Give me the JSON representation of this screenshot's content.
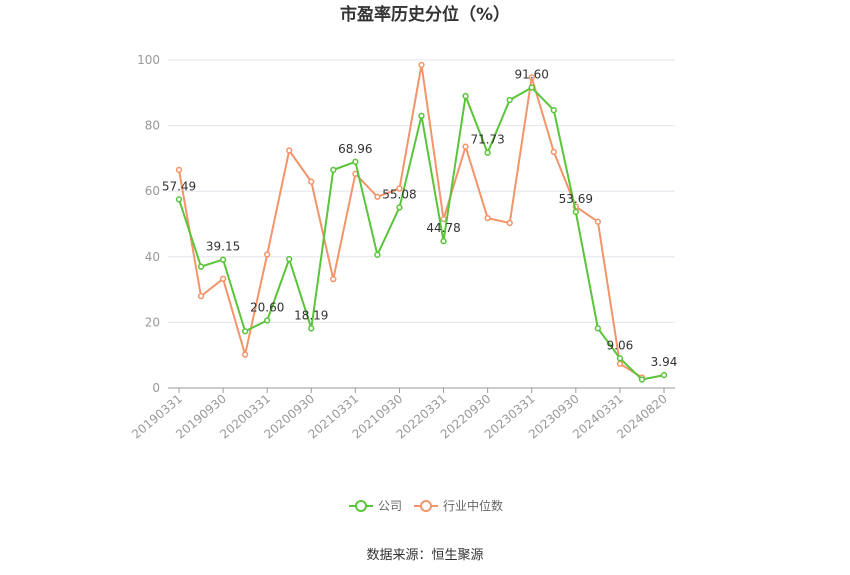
{
  "chart_data": {
    "type": "line",
    "title": "市盈率历史分位（%）",
    "source": "数据来源：恒生聚源",
    "x": [
      "20190331",
      "20190630",
      "20190930",
      "20191231",
      "20200331",
      "20200630",
      "20200930",
      "20201231",
      "20210331",
      "20210630",
      "20210930",
      "20211231",
      "20220331",
      "20220630",
      "20220930",
      "20221231",
      "20230331",
      "20230630",
      "20230930",
      "20231231",
      "20240331",
      "20240630",
      "20240820"
    ],
    "x_tick_labels": [
      "20190331",
      "20190930",
      "20200331",
      "20200930",
      "20210331",
      "20210930",
      "20220331",
      "20220930",
      "20230331",
      "20230930",
      "20240331",
      "20240820"
    ],
    "ylim": [
      0,
      100
    ],
    "y_ticks": [
      "0",
      "20",
      "40",
      "60",
      "80",
      "100"
    ],
    "grid": true,
    "legend_position": "bottom",
    "series": [
      {
        "name": "公司",
        "color": "#5ac43a",
        "values": [
          57.49,
          37.0,
          39.15,
          17.3,
          20.6,
          39.3,
          18.19,
          66.5,
          68.96,
          40.6,
          55.08,
          83.0,
          44.78,
          89.0,
          71.73,
          87.8,
          91.6,
          84.7,
          53.69,
          18.2,
          9.06,
          2.6,
          3.94
        ],
        "labels": [
          "57.49",
          "",
          "39.15",
          "",
          "20.60",
          "",
          "18.19",
          "",
          "68.96",
          "",
          "55.08",
          "",
          "44.78",
          "",
          "71.73",
          "",
          "91.60",
          "",
          "53.69",
          "",
          "9.06",
          "",
          "3.94"
        ]
      },
      {
        "name": "行业中位数",
        "color": "#f4946a",
        "values": [
          66.5,
          28.0,
          33.3,
          10.2,
          40.7,
          72.4,
          62.9,
          33.2,
          65.3,
          58.3,
          60.8,
          98.5,
          51.5,
          73.6,
          51.8,
          50.3,
          94.7,
          72.0,
          55.3,
          50.7,
          7.4,
          3.2,
          null
        ]
      }
    ]
  }
}
